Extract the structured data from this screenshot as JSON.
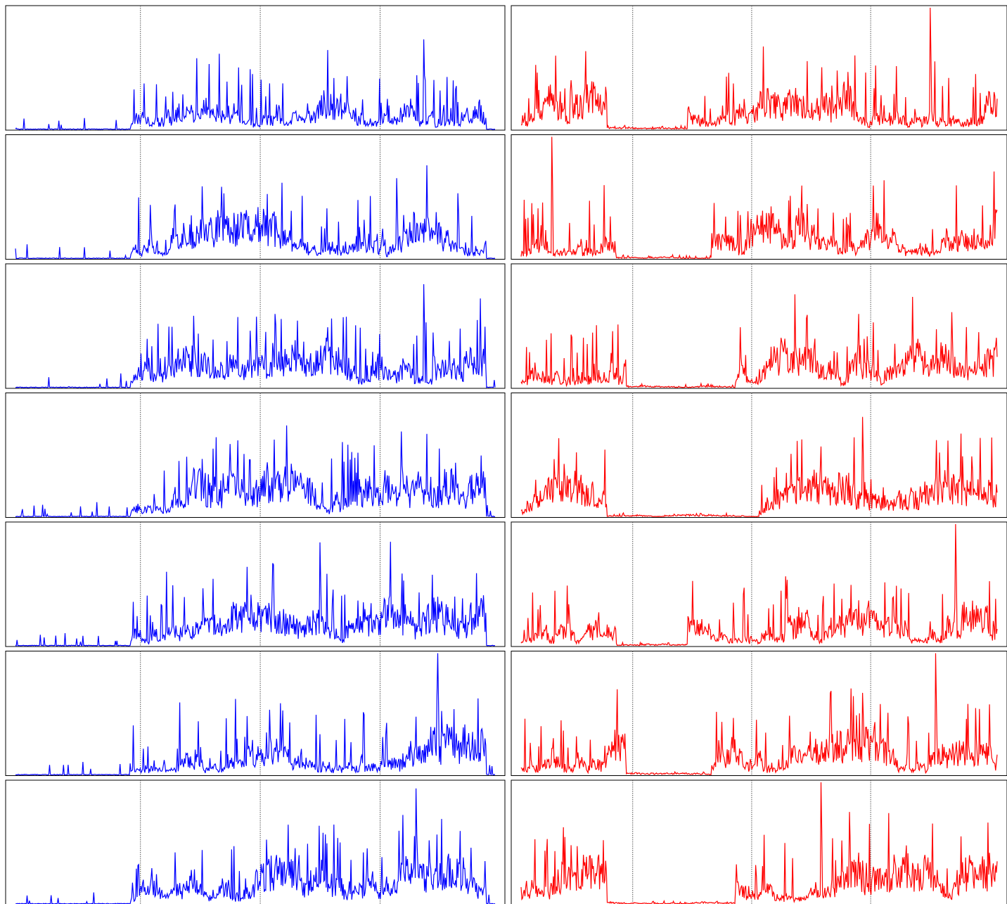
{
  "figure": {
    "layout": {
      "rows": 7,
      "columns": 2
    },
    "axes_visible": false,
    "tick_labels": false
  },
  "chart_data": {
    "type": "line",
    "title": "",
    "xlabel": "",
    "ylabel": "",
    "xlim": [
      0,
      1000
    ],
    "ylim": [
      0,
      1
    ],
    "grid": false,
    "column_colors": {
      "left": "#0000ff",
      "right": "#ff0000"
    },
    "rows": [
      {
        "row": 1,
        "left": {
          "vlines_x": [
            270,
            510,
            750
          ],
          "peak_x": 852,
          "peak_y": 0.74
        },
        "right": {
          "vlines_x": [
            245,
            485,
            725
          ],
          "peak_x": 860,
          "peak_y": 1.0
        }
      },
      {
        "row": 2,
        "left": {
          "vlines_x": [
            270,
            510,
            750
          ],
          "peak_x": 795,
          "peak_y": 0.66
        },
        "right": {
          "vlines_x": [
            245,
            485,
            725
          ],
          "peak_x": 65,
          "peak_y": 1.0
        }
      },
      {
        "row": 3,
        "left": {
          "vlines_x": [
            270,
            510,
            750
          ],
          "peak_x": 852,
          "peak_y": 0.85
        },
        "right": {
          "vlines_x": [
            245,
            485,
            725
          ],
          "peak_x": 905,
          "peak_y": 0.62
        }
      },
      {
        "row": 4,
        "left": {
          "vlines_x": [
            270,
            510,
            750
          ],
          "peak_x": 805,
          "peak_y": 0.7
        },
        "right": {
          "vlines_x": [
            245,
            485,
            725
          ],
          "peak_x": 718,
          "peak_y": 0.82
        }
      },
      {
        "row": 5,
        "left": {
          "vlines_x": [
            270,
            510,
            750
          ],
          "peak_x": 635,
          "peak_y": 0.85
        },
        "right": {
          "vlines_x": [
            245,
            485,
            725
          ],
          "peak_x": 912,
          "peak_y": 1.0
        }
      },
      {
        "row": 6,
        "left": {
          "vlines_x": [
            270,
            510,
            750
          ],
          "peak_x": 880,
          "peak_y": 1.0
        },
        "right": {
          "vlines_x": [
            245,
            485,
            725
          ],
          "peak_x": 870,
          "peak_y": 1.0
        }
      },
      {
        "row": 7,
        "left": {
          "vlines_x": [
            270,
            510,
            750
          ],
          "peak_x": 835,
          "peak_y": 0.95
        },
        "right": {
          "vlines_x": [
            245,
            485,
            725
          ],
          "peak_x": 630,
          "peak_y": 1.0
        }
      }
    ]
  }
}
